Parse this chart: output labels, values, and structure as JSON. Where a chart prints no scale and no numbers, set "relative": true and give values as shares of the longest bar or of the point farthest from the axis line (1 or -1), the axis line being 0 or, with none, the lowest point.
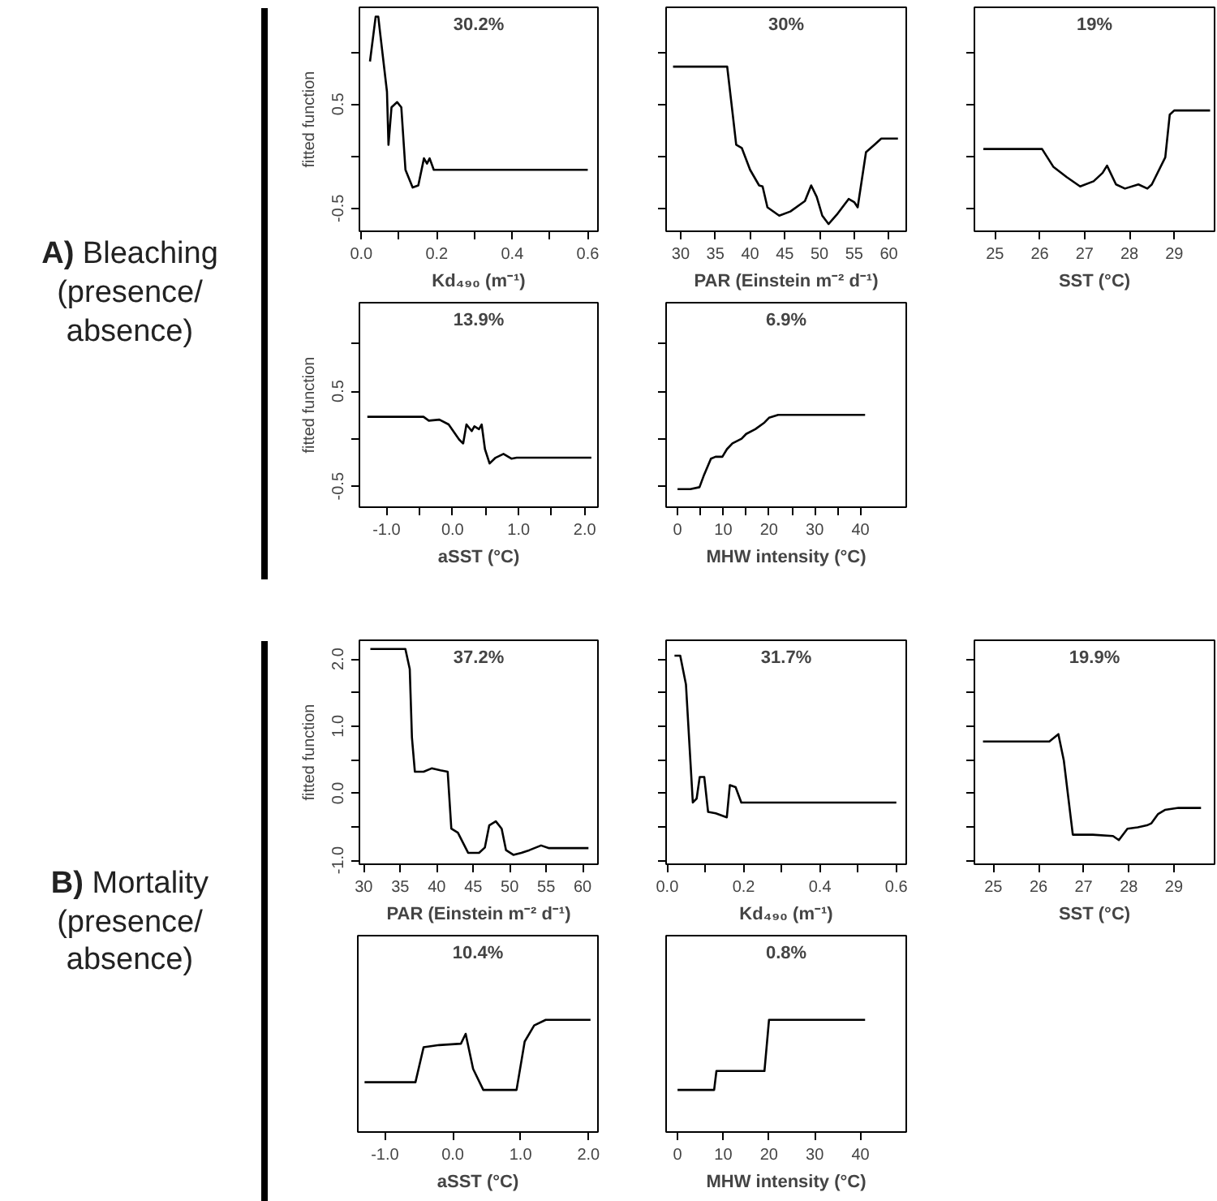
{
  "chart_data": [
    {
      "type": "line",
      "title": "30.2%",
      "xlabel": "Kd₄₉₀ (m⁻¹)",
      "ylabel": "fitted function",
      "annotations": [
        "A) Bleaching (presence/absence)"
      ],
      "grid": false,
      "marker": "none",
      "line_style": "solid",
      "color": "#000000",
      "xlim": [
        -0.005,
        0.627
      ],
      "ylim": [
        -0.72,
        1.43
      ],
      "xticks": [
        {
          "value": 0.0,
          "label": "0.0"
        },
        {
          "value": 0.1,
          "label": null
        },
        0.2,
        {
          "value": 0.3,
          "label": null
        },
        0.4,
        {
          "value": 0.5,
          "label": null
        },
        0.6
      ],
      "yticks": [
        -0.5,
        {
          "value": 0,
          "label": null
        },
        0.5,
        {
          "value": 1.0,
          "label": null
        }
      ],
      "x": [
        0.023,
        0.038,
        0.045,
        0.05,
        0.068,
        0.072,
        0.08,
        0.095,
        0.106,
        0.117,
        0.136,
        0.151,
        0.166,
        0.174,
        0.181,
        0.192,
        0.6
      ],
      "values": [
        0.91,
        1.34,
        1.34,
        1.18,
        0.62,
        0.11,
        0.47,
        0.52,
        0.47,
        -0.13,
        -0.3,
        -0.28,
        -0.02,
        -0.07,
        -0.02,
        -0.13,
        -0.13
      ]
    },
    {
      "type": "line",
      "title": "30%",
      "xlabel": "PAR (Einstein m⁻² d⁻¹)",
      "tick_labels": "x",
      "grid": false,
      "marker": "none",
      "line_style": "solid",
      "color": "#000000",
      "xlim": [
        27.9,
        62.5
      ],
      "ylim": [
        -0.72,
        1.43
      ],
      "xticks": [
        30,
        35,
        40,
        45,
        50,
        55,
        60
      ],
      "yticks": [
        -0.5,
        0,
        0.5,
        1.0
      ],
      "x": [
        28.9,
        36.7,
        37.5,
        38,
        38.8,
        40,
        41.3,
        41.8,
        42.5,
        44.2,
        45.8,
        47.9,
        48.8,
        49.6,
        50.4,
        51.3,
        52.5,
        54.2,
        55,
        55.5,
        56.7,
        57.9,
        58.9,
        61.3
      ],
      "values": [
        0.86,
        0.86,
        0.4,
        0.11,
        0.08,
        -0.13,
        -0.28,
        -0.29,
        -0.49,
        -0.57,
        -0.53,
        -0.43,
        -0.28,
        -0.39,
        -0.57,
        -0.65,
        -0.56,
        -0.41,
        -0.44,
        -0.49,
        0.04,
        0.11,
        0.17,
        0.17
      ]
    },
    {
      "type": "line",
      "title": "19%",
      "xlabel": "SST (°C)",
      "tick_labels": "x",
      "grid": false,
      "marker": "none",
      "line_style": "solid",
      "color": "#000000",
      "xlim": [
        24.54,
        29.9
      ],
      "ylim": [
        -0.72,
        1.43
      ],
      "xticks": [
        25,
        26,
        27,
        28,
        29
      ],
      "yticks": [
        -0.5,
        0,
        0.5,
        1.0
      ],
      "x": [
        24.74,
        26.05,
        26.3,
        26.6,
        26.9,
        27.2,
        27.4,
        27.5,
        27.7,
        27.9,
        28.2,
        28.4,
        28.5,
        28.8,
        28.9,
        29.0,
        29.8
      ],
      "values": [
        0.07,
        0.07,
        -0.1,
        -0.2,
        -0.29,
        -0.24,
        -0.16,
        -0.09,
        -0.27,
        -0.31,
        -0.27,
        -0.31,
        -0.27,
        -0.01,
        0.4,
        0.44,
        0.44
      ]
    },
    {
      "type": "line",
      "title": "13.9%",
      "xlabel": "aSST (°C)",
      "ylabel": "fitted function",
      "grid": false,
      "marker": "none",
      "line_style": "solid",
      "color": "#000000",
      "xlim": [
        -1.41,
        2.2
      ],
      "ylim": [
        -0.72,
        1.43
      ],
      "xticks": [
        {
          "value": -1.0,
          "label": "-1.0"
        },
        {
          "value": -0.5,
          "label": null
        },
        {
          "value": 0.0,
          "label": "0.0"
        },
        {
          "value": 0.5,
          "label": null
        },
        {
          "value": 1.0,
          "label": "1.0"
        },
        {
          "value": 1.5,
          "label": null
        },
        {
          "value": 2.0,
          "label": "2.0"
        }
      ],
      "yticks": [
        -0.5,
        {
          "value": 0,
          "label": null
        },
        0.5,
        {
          "value": 1.0,
          "label": null
        }
      ],
      "x": [
        -1.29,
        -0.44,
        -0.36,
        -0.2,
        -0.06,
        0.1,
        0.16,
        0.21,
        0.29,
        0.33,
        0.4,
        0.44,
        0.49,
        0.56,
        0.65,
        0.77,
        0.89,
        0.97,
        2.1
      ],
      "values": [
        0.23,
        0.23,
        0.19,
        0.2,
        0.15,
        -0.01,
        -0.05,
        0.15,
        0.08,
        0.13,
        0.1,
        0.15,
        -0.11,
        -0.26,
        -0.2,
        -0.16,
        -0.21,
        -0.2,
        -0.2
      ]
    },
    {
      "type": "line",
      "title": "6.9%",
      "xlabel": "MHW intensity (°C)",
      "tick_labels": "x",
      "grid": false,
      "marker": "none",
      "line_style": "solid",
      "color": "#000000",
      "xlim": [
        -2.5,
        50
      ],
      "ylim": [
        -0.72,
        1.43
      ],
      "xticks": [
        0,
        {
          "value": 5,
          "label": null
        },
        10,
        {
          "value": 15,
          "label": null
        },
        20,
        {
          "value": 25,
          "label": null
        },
        30,
        {
          "value": 35,
          "label": null
        },
        40
      ],
      "yticks": [
        -0.5,
        0,
        0.5,
        1.0
      ],
      "x": [
        0,
        2.8,
        4.8,
        5.8,
        7.3,
        8.3,
        9.8,
        10.8,
        12,
        14,
        15,
        17,
        19,
        20,
        22,
        41
      ],
      "values": [
        -0.53,
        -0.53,
        -0.51,
        -0.38,
        -0.21,
        -0.19,
        -0.19,
        -0.11,
        -0.05,
        0.0,
        0.05,
        0.1,
        0.17,
        0.22,
        0.25,
        0.25
      ]
    },
    {
      "type": "line",
      "title": "37.2%",
      "xlabel": "PAR (Einstein m⁻² d⁻¹)",
      "ylabel": "fitted function",
      "annotations": [
        "B) Mortality (presence/absence)"
      ],
      "grid": false,
      "marker": "none",
      "line_style": "solid",
      "color": "#000000",
      "xlim": [
        29.4,
        62.1
      ],
      "ylim": [
        -1.06,
        2.28
      ],
      "xticks": [
        30,
        35,
        40,
        45,
        50,
        55,
        60
      ],
      "yticks": [
        {
          "value": -1.0,
          "label": "-1.0"
        },
        {
          "value": -0.5,
          "label": null
        },
        {
          "value": 0.0,
          "label": "0.0"
        },
        {
          "value": 0.5,
          "label": null
        },
        {
          "value": 1.0,
          "label": "1.0"
        },
        {
          "value": 1.5,
          "label": null
        },
        {
          "value": 2.0,
          "label": "2.0"
        }
      ],
      "x": [
        30.9,
        35.7,
        36.3,
        36.6,
        37.0,
        38.2,
        39.3,
        40.5,
        41.5,
        42,
        42.9,
        44.3,
        45.8,
        46.6,
        47.2,
        48.1,
        48.9,
        49.5,
        50.5,
        51.6,
        52.7,
        54.3,
        55.4,
        60.8
      ],
      "values": [
        2.15,
        2.15,
        1.85,
        0.83,
        0.32,
        0.32,
        0.37,
        0.34,
        0.32,
        -0.53,
        -0.59,
        -0.89,
        -0.89,
        -0.81,
        -0.48,
        -0.42,
        -0.53,
        -0.85,
        -0.92,
        -0.89,
        -0.85,
        -0.78,
        -0.82,
        -0.82
      ]
    },
    {
      "type": "line",
      "title": "31.7%",
      "xlabel": "Kd₄₉₀ (m⁻¹)",
      "tick_labels": "x",
      "grid": false,
      "marker": "none",
      "line_style": "solid",
      "color": "#000000",
      "xlim": [
        -0.003,
        0.626
      ],
      "ylim": [
        -1.06,
        2.28
      ],
      "xticks": [
        {
          "value": 0.0,
          "label": "0.0"
        },
        {
          "value": 0.1,
          "label": null
        },
        0.2,
        {
          "value": 0.3,
          "label": null
        },
        0.4,
        {
          "value": 0.5,
          "label": null
        },
        0.6
      ],
      "yticks": [
        -1.0,
        -0.5,
        0.0,
        0.5,
        1.0,
        1.5,
        2.0
      ],
      "x": [
        0.019,
        0.034,
        0.049,
        0.06,
        0.067,
        0.077,
        0.085,
        0.097,
        0.107,
        0.127,
        0.156,
        0.164,
        0.179,
        0.194,
        0.6
      ],
      "values": [
        2.05,
        2.05,
        1.62,
        0.54,
        -0.14,
        -0.08,
        0.24,
        0.24,
        -0.28,
        -0.3,
        -0.36,
        0.12,
        0.09,
        -0.14,
        -0.14
      ]
    },
    {
      "type": "line",
      "title": "19.9%",
      "xlabel": "SST (°C)",
      "tick_labels": "x",
      "grid": false,
      "marker": "none",
      "line_style": "solid",
      "color": "#000000",
      "xlim": [
        24.58,
        29.9
      ],
      "ylim": [
        -1.06,
        2.28
      ],
      "xticks": [
        25,
        26,
        27,
        28,
        29
      ],
      "yticks": [
        -1.0,
        -0.5,
        0.0,
        0.5,
        1.0,
        1.5,
        2.0
      ],
      "x": [
        24.77,
        26.24,
        26.44,
        26.56,
        26.76,
        27.2,
        27.65,
        27.78,
        27.97,
        28.2,
        28.4,
        28.5,
        28.65,
        28.8,
        29.1,
        29.6
      ],
      "values": [
        0.77,
        0.77,
        0.88,
        0.49,
        -0.62,
        -0.62,
        -0.64,
        -0.7,
        -0.53,
        -0.51,
        -0.48,
        -0.45,
        -0.31,
        -0.25,
        -0.22,
        -0.22
      ]
    },
    {
      "type": "line",
      "title": "10.4%",
      "xlabel": "aSST (°C)",
      "tick_labels": "x",
      "relative": true,
      "grid": false,
      "marker": "none",
      "line_style": "solid",
      "color": "#000000",
      "xlim": [
        -1.4,
        2.14
      ],
      "xticks": [
        {
          "value": -1.0,
          "label": "-1.0"
        },
        {
          "value": 0.0,
          "label": "0.0"
        },
        {
          "value": 1.0,
          "label": "1.0"
        },
        {
          "value": 2.0,
          "label": "2.0"
        }
      ],
      "x": [
        -1.3,
        -0.55,
        -0.43,
        -0.2,
        0.12,
        0.19,
        0.3,
        0.45,
        0.94,
        1.06,
        1.2,
        1.37,
        2.03
      ],
      "values": [
        0.11,
        0.11,
        0.61,
        0.64,
        0.66,
        0.8,
        0.3,
        0,
        0,
        0.69,
        0.92,
        1,
        1
      ]
    },
    {
      "type": "line",
      "title": "0.8%",
      "xlabel": "MHW intensity (°C)",
      "tick_labels": "x",
      "relative": true,
      "grid": false,
      "marker": "none",
      "line_style": "solid",
      "color": "#000000",
      "xlim": [
        -2.5,
        50
      ],
      "xticks": [
        0,
        10,
        20,
        30,
        40
      ],
      "x": [
        0,
        8,
        8.5,
        19,
        20,
        41
      ],
      "values": [
        0,
        0,
        0.27,
        0.27,
        1,
        1
      ]
    }
  ]
}
